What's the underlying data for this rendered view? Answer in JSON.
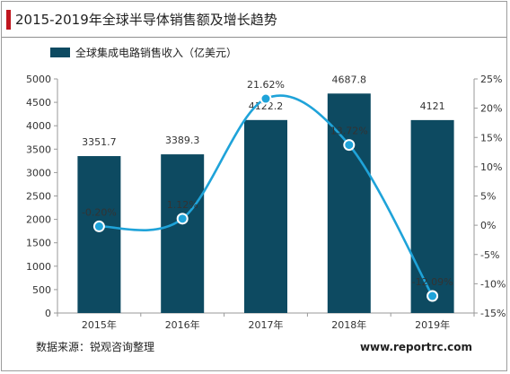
{
  "title": "2015-2019年全球半导体销售额及增长趋势",
  "source": "数据来源：锐观咨询整理",
  "website": "www.reportrc.com",
  "colors": {
    "bar": "#0d4a61",
    "line": "#1fa3d9",
    "accent": "#c0161f",
    "text": "#333333",
    "axis": "#999999"
  },
  "chart_data": {
    "type": "bar",
    "categories": [
      "2015年",
      "2016年",
      "2017年",
      "2018年",
      "2019年"
    ],
    "series": [
      {
        "name": "全球集成电路销售收入（亿美元）",
        "type": "bar",
        "axis": "left",
        "values": [
          3351.7,
          3389.3,
          4122.2,
          4687.8,
          4121
        ],
        "labels": [
          "3351.7",
          "3389.3",
          "4122.2",
          "4687.8",
          "4121"
        ]
      },
      {
        "type": "line",
        "axis": "right",
        "smooth": true,
        "values": [
          -0.2,
          1.12,
          21.62,
          13.72,
          -12.09
        ],
        "labels": [
          "-0.20%",
          "1.12%",
          "21.62%",
          "13.72%",
          "-12.09%"
        ]
      }
    ],
    "y_left": {
      "min": 0,
      "max": 5000,
      "step": 500,
      "ticks": [
        "0",
        "500",
        "1000",
        "1500",
        "2000",
        "2500",
        "3000",
        "3500",
        "4000",
        "4500",
        "5000"
      ]
    },
    "y_right": {
      "min": -15,
      "max": 25,
      "step": 5,
      "ticks": [
        "-15%",
        "-10%",
        "-5%",
        "0%",
        "5%",
        "10%",
        "15%",
        "20%",
        "25%"
      ]
    },
    "legend": "top-left",
    "grid": false
  }
}
